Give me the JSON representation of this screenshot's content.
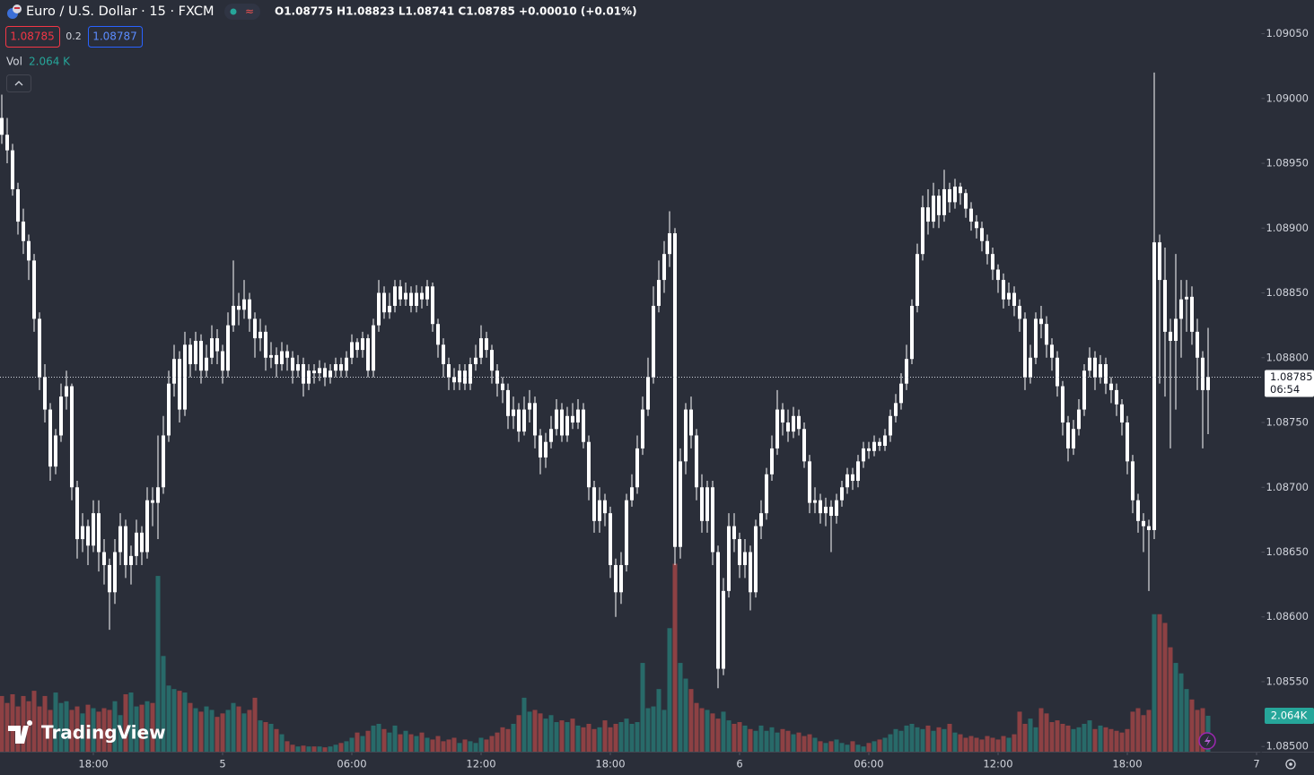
{
  "chart_data": {
    "type": "candlestick",
    "title": "Euro / U.S. Dollar · 15 · FXCM",
    "ohlc_text": "O1.08775 H1.08823 L1.08741 C1.08785 +0.00010 (+0.01%)",
    "bid": 1.08785,
    "spread": 0.2,
    "ask": 1.08787,
    "watermark": "TradingView",
    "candle_color": "#ffffff",
    "xlim": [
      0,
      233
    ],
    "xticks": [
      {
        "value": 17,
        "label": "18:00"
      },
      {
        "value": 41,
        "label": "5"
      },
      {
        "value": 65,
        "label": "06:00"
      },
      {
        "value": 89,
        "label": "12:00"
      },
      {
        "value": 113,
        "label": "18:00"
      },
      {
        "value": 137,
        "label": "6"
      },
      {
        "value": 161,
        "label": "06:00"
      },
      {
        "value": 185,
        "label": "12:00"
      },
      {
        "value": 209,
        "label": "18:00"
      },
      {
        "value": 233,
        "label": "7"
      }
    ],
    "ylim": [
      1.08496,
      1.09076
    ],
    "yticks": [
      {
        "value": 1.0905,
        "label": "1.09050"
      },
      {
        "value": 1.09,
        "label": "1.09000"
      },
      {
        "value": 1.0895,
        "label": "1.08950"
      },
      {
        "value": 1.089,
        "label": "1.08900"
      },
      {
        "value": 1.0885,
        "label": "1.08850"
      },
      {
        "value": 1.088,
        "label": "1.08800"
      },
      {
        "value": 1.0875,
        "label": "1.08750"
      },
      {
        "value": 1.087,
        "label": "1.08700"
      },
      {
        "value": 1.0865,
        "label": "1.08650"
      },
      {
        "value": 1.086,
        "label": "1.08600"
      },
      {
        "value": 1.0855,
        "label": "1.08550"
      },
      {
        "value": 1.085,
        "label": "1.08500"
      }
    ],
    "last_price": {
      "value": 1.08785,
      "label": "1.08785",
      "countdown": "06:54"
    },
    "open": [
      1.08985,
      1.08972,
      1.0896,
      1.0893,
      1.08905,
      1.0889,
      1.08875,
      1.0883,
      1.08785,
      1.0876,
      1.08716,
      1.0874,
      1.0877,
      1.08778,
      1.087,
      1.0866,
      1.0867,
      1.08655,
      1.0868,
      1.0865,
      1.0864,
      1.08619,
      1.0865,
      1.0867,
      1.0864,
      1.08647,
      1.08665,
      1.0865,
      1.0869,
      1.08688,
      1.087,
      1.0874,
      1.0878,
      1.08799,
      1.0876,
      1.0881,
      1.08795,
      1.08813,
      1.0879,
      1.088,
      1.08815,
      1.08805,
      1.0879,
      1.08825,
      1.0884,
      1.08837,
      1.08845,
      1.0883,
      1.08815,
      1.0882,
      1.088,
      1.08802,
      1.08795,
      1.08805,
      1.088,
      1.0879,
      1.08795,
      1.0878,
      1.0879,
      1.08788,
      1.08792,
      1.08785,
      1.0879,
      1.08795,
      1.0879,
      1.088,
      1.08812,
      1.08806,
      1.08815,
      1.0879,
      1.08825,
      1.0885,
      1.08835,
      1.0884,
      1.08855,
      1.08845,
      1.0885,
      1.0884,
      1.0885,
      1.08845,
      1.08855,
      1.08826,
      1.0881,
      1.08795,
      1.08785,
      1.08781,
      1.0879,
      1.0878,
      1.08795,
      1.088,
      1.08815,
      1.08806,
      1.0879,
      1.0878,
      1.08775,
      1.08755,
      1.0876,
      1.08743,
      1.0876,
      1.08765,
      1.0874,
      1.08723,
      1.08735,
      1.08745,
      1.0876,
      1.0874,
      1.08755,
      1.0875,
      1.0876,
      1.08735,
      1.087,
      1.08674,
      1.0869,
      1.0868,
      1.0864,
      1.08619,
      1.0864,
      1.0869,
      1.087,
      1.0873,
      1.0876,
      1.08785,
      1.0884,
      1.0886,
      1.0888,
      1.08896,
      1.08654,
      1.0872,
      1.0876,
      1.0874,
      1.087,
      1.08674,
      1.087,
      1.0865,
      1.0856,
      1.0862,
      1.0867,
      1.0866,
      1.0864,
      1.0865,
      1.08619,
      1.0867,
      1.0868,
      1.0871,
      1.0873,
      1.0876,
      1.0875,
      1.08743,
      1.08755,
      1.08745,
      1.0872,
      1.08688,
      1.0869,
      1.0868,
      1.08685,
      1.08678,
      1.0869,
      1.087,
      1.0871,
      1.08705,
      1.0872,
      1.0873,
      1.08728,
      1.08735,
      1.08732,
      1.0874,
      1.08755,
      1.08765,
      1.0878,
      1.08799,
      1.0884,
      1.0888,
      1.08916,
      1.08905,
      1.08925,
      1.0891,
      1.0893,
      1.0892,
      1.08932,
      1.08927,
      1.08915,
      1.08905,
      1.089,
      1.0889,
      1.0888,
      1.08868,
      1.0886,
      1.08845,
      1.0885,
      1.0884,
      1.0883,
      1.08785,
      1.088,
      1.0883,
      1.08826,
      1.0881,
      1.088,
      1.08778,
      1.0875,
      1.0873,
      1.08745,
      1.0876,
      1.0879,
      1.088,
      1.08785,
      1.08795,
      1.0878,
      1.08775,
      1.08764,
      1.0875,
      1.0872,
      1.0869,
      1.08674,
      1.0867,
      1.08667,
      1.08889,
      1.0886,
      1.0882,
      1.08813,
      1.0883,
      1.08845,
      1.08847,
      1.0882,
      1.088,
      1.08775
    ],
    "high": [
      1.09003,
      1.08985,
      1.08965,
      1.08935,
      1.08915,
      1.08895,
      1.0888,
      1.08835,
      1.08795,
      1.08765,
      1.08745,
      1.0878,
      1.0879,
      1.0878,
      1.08705,
      1.0868,
      1.08675,
      1.0869,
      1.0869,
      1.0866,
      1.08645,
      1.0866,
      1.0868,
      1.08675,
      1.08655,
      1.08675,
      1.0867,
      1.087,
      1.087,
      1.0874,
      1.08755,
      1.0879,
      1.0881,
      1.08805,
      1.0882,
      1.08815,
      1.0882,
      1.08818,
      1.0881,
      1.08825,
      1.08822,
      1.0881,
      1.08835,
      1.08875,
      1.0885,
      1.0886,
      1.0885,
      1.08835,
      1.0883,
      1.08825,
      1.08812,
      1.08808,
      1.08812,
      1.0881,
      1.08805,
      1.08802,
      1.088,
      1.08795,
      1.08795,
      1.08798,
      1.08796,
      1.08795,
      1.088,
      1.088,
      1.08805,
      1.08818,
      1.08815,
      1.0882,
      1.08818,
      1.0883,
      1.0886,
      1.08855,
      1.0885,
      1.0886,
      1.0886,
      1.08858,
      1.08855,
      1.08856,
      1.08855,
      1.0886,
      1.08858,
      1.0883,
      1.08815,
      1.088,
      1.08792,
      1.08795,
      1.08795,
      1.088,
      1.0881,
      1.08825,
      1.0882,
      1.0881,
      1.08795,
      1.08785,
      1.0878,
      1.0877,
      1.08765,
      1.0877,
      1.08775,
      1.0877,
      1.08745,
      1.08742,
      1.08755,
      1.08768,
      1.08765,
      1.08762,
      1.08765,
      1.08768,
      1.08765,
      1.0874,
      1.08705,
      1.087,
      1.08695,
      1.08685,
      1.08645,
      1.0865,
      1.08695,
      1.0871,
      1.0874,
      1.0877,
      1.088,
      1.08855,
      1.08875,
      1.0889,
      1.08913,
      1.089,
      1.0873,
      1.08765,
      1.0877,
      1.08745,
      1.0871,
      1.08705,
      1.08705,
      1.08655,
      1.0863,
      1.0868,
      1.0868,
      1.08665,
      1.0866,
      1.08655,
      1.08675,
      1.0869,
      1.08715,
      1.0874,
      1.08775,
      1.08765,
      1.0876,
      1.08762,
      1.0876,
      1.0875,
      1.08725,
      1.087,
      1.08695,
      1.08692,
      1.0869,
      1.08695,
      1.08705,
      1.08715,
      1.08715,
      1.08725,
      1.08735,
      1.08735,
      1.0874,
      1.08738,
      1.08745,
      1.0876,
      1.08772,
      1.08788,
      1.0881,
      1.08845,
      1.08888,
      1.08925,
      1.0893,
      1.08935,
      1.0893,
      1.08945,
      1.08935,
      1.08938,
      1.08935,
      1.0893,
      1.0892,
      1.0891,
      1.08905,
      1.08895,
      1.08885,
      1.08872,
      1.08865,
      1.08858,
      1.08855,
      1.08845,
      1.08835,
      1.0881,
      1.08835,
      1.0884,
      1.08832,
      1.08815,
      1.08805,
      1.08782,
      1.08755,
      1.08752,
      1.08768,
      1.08795,
      1.08808,
      1.08805,
      1.08802,
      1.088,
      1.08785,
      1.0878,
      1.08768,
      1.08755,
      1.08725,
      1.08695,
      1.0868,
      1.08675,
      1.0902,
      1.08895,
      1.08885,
      1.0883,
      1.0888,
      1.0886,
      1.0886,
      1.08855,
      1.0883,
      1.08805,
      1.08823
    ],
    "low": [
      1.08965,
      1.0895,
      1.08925,
      1.08895,
      1.0888,
      1.0886,
      1.0882,
      1.08775,
      1.0875,
      1.08705,
      1.0871,
      1.08735,
      1.0876,
      1.0869,
      1.08645,
      1.0865,
      1.0864,
      1.0865,
      1.08635,
      1.08625,
      1.0859,
      1.0861,
      1.0864,
      1.0863,
      1.08625,
      1.0864,
      1.0864,
      1.08645,
      1.0867,
      1.0866,
      1.08695,
      1.08735,
      1.0877,
      1.0875,
      1.08755,
      1.08785,
      1.0879,
      1.0878,
      1.08785,
      1.08795,
      1.08795,
      1.0878,
      1.08785,
      1.0882,
      1.08825,
      1.0883,
      1.0882,
      1.088,
      1.08805,
      1.0879,
      1.08792,
      1.08785,
      1.0879,
      1.0879,
      1.0878,
      1.08785,
      1.0877,
      1.08775,
      1.0878,
      1.08782,
      1.08778,
      1.0878,
      1.08785,
      1.08785,
      1.08785,
      1.08795,
      1.088,
      1.088,
      1.08785,
      1.08785,
      1.0882,
      1.0883,
      1.0883,
      1.08835,
      1.0884,
      1.0884,
      1.08835,
      1.08835,
      1.08838,
      1.0884,
      1.0882,
      1.088,
      1.08785,
      1.08775,
      1.08775,
      1.08775,
      1.08775,
      1.08775,
      1.0879,
      1.08795,
      1.088,
      1.0878,
      1.0877,
      1.08765,
      1.08745,
      1.08745,
      1.08735,
      1.0874,
      1.0875,
      1.0873,
      1.0871,
      1.08715,
      1.0873,
      1.0874,
      1.08735,
      1.08735,
      1.08745,
      1.08745,
      1.0873,
      1.0869,
      1.08665,
      1.08665,
      1.0867,
      1.0863,
      1.086,
      1.0861,
      1.08635,
      1.08685,
      1.08695,
      1.08725,
      1.08755,
      1.0878,
      1.08835,
      1.0885,
      1.0887,
      1.0864,
      1.08645,
      1.0871,
      1.0873,
      1.0869,
      1.08665,
      1.08665,
      1.0864,
      1.08545,
      1.08555,
      1.08615,
      1.0865,
      1.0863,
      1.0863,
      1.08605,
      1.08615,
      1.0866,
      1.08675,
      1.08705,
      1.08725,
      1.0874,
      1.08735,
      1.08738,
      1.0874,
      1.08715,
      1.0868,
      1.0868,
      1.08672,
      1.0867,
      1.0865,
      1.08672,
      1.08685,
      1.08695,
      1.08698,
      1.087,
      1.08715,
      1.08722,
      1.08724,
      1.08728,
      1.08728,
      1.08735,
      1.0875,
      1.0876,
      1.08775,
      1.08795,
      1.08835,
      1.08875,
      1.08895,
      1.089,
      1.089,
      1.08905,
      1.08912,
      1.08915,
      1.08918,
      1.08908,
      1.08898,
      1.08892,
      1.08882,
      1.08872,
      1.0886,
      1.0885,
      1.08838,
      1.0884,
      1.08832,
      1.0882,
      1.08775,
      1.0878,
      1.08795,
      1.08815,
      1.088,
      1.0879,
      1.0877,
      1.0874,
      1.0872,
      1.08725,
      1.0874,
      1.08755,
      1.08785,
      1.08775,
      1.0878,
      1.08772,
      1.08765,
      1.08755,
      1.0874,
      1.0871,
      1.0868,
      1.08665,
      1.0865,
      1.0862,
      1.0866,
      1.0878,
      1.0877,
      1.0873,
      1.0876,
      1.088,
      1.0882,
      1.0881,
      1.08775,
      1.0873,
      1.08741
    ],
    "close": [
      1.08972,
      1.0896,
      1.0893,
      1.08905,
      1.0889,
      1.08875,
      1.0883,
      1.08785,
      1.0876,
      1.08716,
      1.0874,
      1.0877,
      1.08778,
      1.087,
      1.0866,
      1.0867,
      1.08655,
      1.0868,
      1.0865,
      1.0864,
      1.08619,
      1.0865,
      1.0867,
      1.0864,
      1.08647,
      1.08665,
      1.0865,
      1.0869,
      1.08688,
      1.087,
      1.0874,
      1.0878,
      1.08799,
      1.0876,
      1.0881,
      1.08795,
      1.08813,
      1.0879,
      1.088,
      1.08815,
      1.08805,
      1.0879,
      1.08825,
      1.0884,
      1.08837,
      1.08845,
      1.0883,
      1.08815,
      1.0882,
      1.088,
      1.08802,
      1.08795,
      1.08805,
      1.088,
      1.0879,
      1.08795,
      1.0878,
      1.0879,
      1.08788,
      1.08792,
      1.08785,
      1.0879,
      1.08795,
      1.0879,
      1.088,
      1.08812,
      1.08806,
      1.08815,
      1.0879,
      1.08825,
      1.0885,
      1.08835,
      1.0884,
      1.08855,
      1.08845,
      1.0885,
      1.0884,
      1.0885,
      1.08845,
      1.08855,
      1.08826,
      1.0881,
      1.08795,
      1.08785,
      1.08781,
      1.0879,
      1.0878,
      1.08795,
      1.088,
      1.08815,
      1.08806,
      1.0879,
      1.0878,
      1.08775,
      1.08755,
      1.0876,
      1.08743,
      1.0876,
      1.08765,
      1.0874,
      1.08723,
      1.08735,
      1.08745,
      1.0876,
      1.0874,
      1.08755,
      1.0875,
      1.0876,
      1.08735,
      1.087,
      1.08674,
      1.0869,
      1.0868,
      1.0864,
      1.08619,
      1.0864,
      1.0869,
      1.087,
      1.0873,
      1.0876,
      1.08785,
      1.0884,
      1.0886,
      1.0888,
      1.08896,
      1.08654,
      1.0872,
      1.0876,
      1.0874,
      1.087,
      1.08674,
      1.087,
      1.0865,
      1.0856,
      1.0862,
      1.0867,
      1.0866,
      1.0864,
      1.0865,
      1.08619,
      1.0867,
      1.0868,
      1.0871,
      1.0873,
      1.0876,
      1.0875,
      1.08743,
      1.08755,
      1.08745,
      1.0872,
      1.08688,
      1.0869,
      1.0868,
      1.08685,
      1.08678,
      1.0869,
      1.087,
      1.0871,
      1.08705,
      1.0872,
      1.0873,
      1.08728,
      1.08735,
      1.08732,
      1.0874,
      1.08755,
      1.08765,
      1.0878,
      1.08799,
      1.0884,
      1.0888,
      1.08916,
      1.08905,
      1.08925,
      1.0891,
      1.0893,
      1.0892,
      1.08932,
      1.08927,
      1.08915,
      1.08905,
      1.089,
      1.0889,
      1.0888,
      1.08868,
      1.0886,
      1.08845,
      1.0885,
      1.0884,
      1.0883,
      1.08785,
      1.088,
      1.0883,
      1.08826,
      1.0881,
      1.088,
      1.08778,
      1.0875,
      1.0873,
      1.08745,
      1.0876,
      1.0879,
      1.088,
      1.08785,
      1.08795,
      1.0878,
      1.08775,
      1.08764,
      1.0875,
      1.0872,
      1.0869,
      1.08674,
      1.0867,
      1.08667,
      1.08889,
      1.0886,
      1.0882,
      1.08813,
      1.0883,
      1.08845,
      1.08847,
      1.0882,
      1.088,
      1.08775,
      1.08785
    ],
    "volume": {
      "name": "Vol",
      "legend_label": "2.064 K",
      "last_label": "2.064K",
      "up_color": "#26a69a",
      "down_color": "#ef5350",
      "ylim": [
        0,
        43.2
      ],
      "values": [
        3.2,
        2.8,
        3.3,
        2.6,
        3.2,
        2.9,
        3.5,
        2.6,
        3.2,
        2.4,
        3.4,
        2.8,
        2.9,
        2.4,
        2.6,
        2.2,
        2.7,
        2.5,
        2.3,
        2.5,
        2.4,
        2.9,
        2.1,
        3.3,
        3.4,
        2.6,
        2.7,
        2.9,
        2.8,
        10.1,
        5.5,
        3.8,
        3.6,
        3.5,
        3.4,
        2.8,
        2.5,
        2.3,
        2.6,
        2.4,
        2.0,
        2.2,
        2.4,
        2.8,
        2.6,
        2.2,
        2.4,
        3.1,
        1.8,
        1.7,
        1.6,
        1.3,
        1.0,
        0.6,
        0.4,
        0.3,
        0.35,
        0.3,
        0.3,
        0.3,
        0.25,
        0.3,
        0.4,
        0.5,
        0.6,
        0.8,
        1.1,
        0.9,
        1.2,
        1.5,
        1.6,
        1.3,
        1.1,
        1.5,
        1.0,
        1.2,
        1.0,
        0.9,
        1.1,
        0.8,
        0.7,
        0.9,
        0.6,
        0.7,
        0.8,
        0.5,
        0.7,
        0.6,
        0.5,
        0.8,
        0.7,
        0.9,
        1.1,
        1.4,
        1.3,
        1.6,
        2.1,
        3.1,
        2.3,
        2.4,
        2.2,
        1.9,
        2.1,
        1.7,
        1.8,
        1.7,
        1.9,
        1.5,
        1.4,
        1.6,
        1.3,
        1.4,
        1.8,
        1.4,
        1.6,
        1.7,
        1.9,
        1.6,
        1.7,
        5.1,
        2.5,
        2.6,
        3.6,
        2.4,
        7.1,
        10.8,
        5.1,
        4.2,
        3.6,
        2.8,
        2.5,
        2.4,
        2.2,
        1.9,
        2.3,
        1.8,
        1.6,
        1.7,
        1.5,
        1.3,
        1.2,
        1.5,
        1.2,
        1.4,
        1.1,
        1.3,
        1.2,
        1.0,
        1.1,
        0.9,
        1.0,
        0.8,
        0.6,
        0.5,
        0.6,
        0.7,
        0.5,
        0.4,
        0.6,
        0.4,
        0.3,
        0.5,
        0.6,
        0.7,
        0.8,
        1.0,
        1.3,
        1.2,
        1.5,
        1.6,
        1.4,
        1.3,
        1.5,
        1.2,
        1.4,
        1.3,
        1.6,
        1.1,
        1.0,
        0.8,
        0.9,
        0.8,
        0.7,
        0.9,
        0.8,
        0.7,
        0.9,
        0.8,
        1.0,
        2.3,
        1.6,
        1.9,
        1.4,
        2.5,
        2.2,
        1.7,
        1.8,
        1.6,
        1.5,
        1.3,
        1.4,
        1.6,
        1.8,
        1.3,
        1.5,
        1.4,
        1.3,
        1.2,
        1.1,
        1.3,
        2.3,
        2.5,
        2.1,
        2.4,
        7.9,
        7.9,
        7.4,
        6.0,
        5.1,
        4.5,
        3.6,
        3.0,
        2.4,
        2.5,
        2.064
      ]
    }
  }
}
